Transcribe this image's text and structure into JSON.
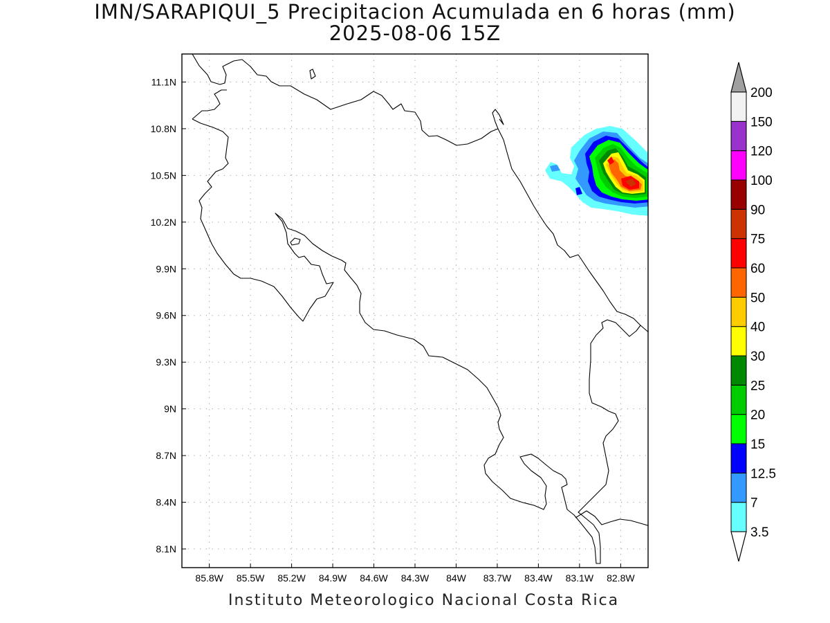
{
  "title": {
    "line1": "IMN/SARAPIQUI_5 Precipitacion Acumulada en 6 horas (mm)",
    "line2": "2025-08-06 15Z"
  },
  "credit": "Instituto Meteorologico Nacional Costa Rica",
  "map": {
    "lon_range": [
      -86.0,
      -82.6
    ],
    "lat_range": [
      7.98,
      11.28
    ],
    "lon_ticks": [
      {
        "value": -85.8,
        "label": "85.8W"
      },
      {
        "value": -85.5,
        "label": "85.5W"
      },
      {
        "value": -85.2,
        "label": "85.2W"
      },
      {
        "value": -84.9,
        "label": "84.9W"
      },
      {
        "value": -84.6,
        "label": "84.6W"
      },
      {
        "value": -84.3,
        "label": "84.3W"
      },
      {
        "value": -84.0,
        "label": "84W"
      },
      {
        "value": -83.7,
        "label": "83.7W"
      },
      {
        "value": -83.4,
        "label": "83.4W"
      },
      {
        "value": -83.1,
        "label": "83.1W"
      },
      {
        "value": -82.8,
        "label": "82.8W"
      }
    ],
    "lat_ticks": [
      {
        "value": 11.1,
        "label": "11.1N"
      },
      {
        "value": 10.8,
        "label": "10.8N"
      },
      {
        "value": 10.5,
        "label": "10.5N"
      },
      {
        "value": 10.2,
        "label": "10.2N"
      },
      {
        "value": 9.9,
        "label": "9.9N"
      },
      {
        "value": 9.6,
        "label": "9.6N"
      },
      {
        "value": 9.3,
        "label": "9.3N"
      },
      {
        "value": 9.0,
        "label": "9N"
      },
      {
        "value": 8.7,
        "label": "8.7N"
      },
      {
        "value": 8.4,
        "label": "8.4N"
      },
      {
        "value": 8.1,
        "label": "8.1N"
      }
    ],
    "grid": "dotted"
  },
  "colorbar": {
    "under_color": "#ffffff",
    "over_color": "#a0a0a0",
    "bins": [
      {
        "color": "#66ffff"
      },
      {
        "color": "#3399ff"
      },
      {
        "color": "#0000ff"
      },
      {
        "color": "#00ff00"
      },
      {
        "color": "#00cc00"
      },
      {
        "color": "#008800"
      },
      {
        "color": "#ffff00"
      },
      {
        "color": "#ffcc00"
      },
      {
        "color": "#ff6600"
      },
      {
        "color": "#ff0000"
      },
      {
        "color": "#cc3300"
      },
      {
        "color": "#990000"
      },
      {
        "color": "#ff00ff"
      },
      {
        "color": "#9933cc"
      },
      {
        "color": "#f2f2f2"
      }
    ],
    "labels": [
      "3.5",
      "7",
      "12.5",
      "15",
      "20",
      "25",
      "30",
      "40",
      "50",
      "60",
      "75",
      "90",
      "100",
      "120",
      "150",
      "200"
    ]
  },
  "precip_cell": {
    "location_desc": "northeast Caribbean coast, near 10.5N 82.7W",
    "max_value_band": "60-75"
  }
}
